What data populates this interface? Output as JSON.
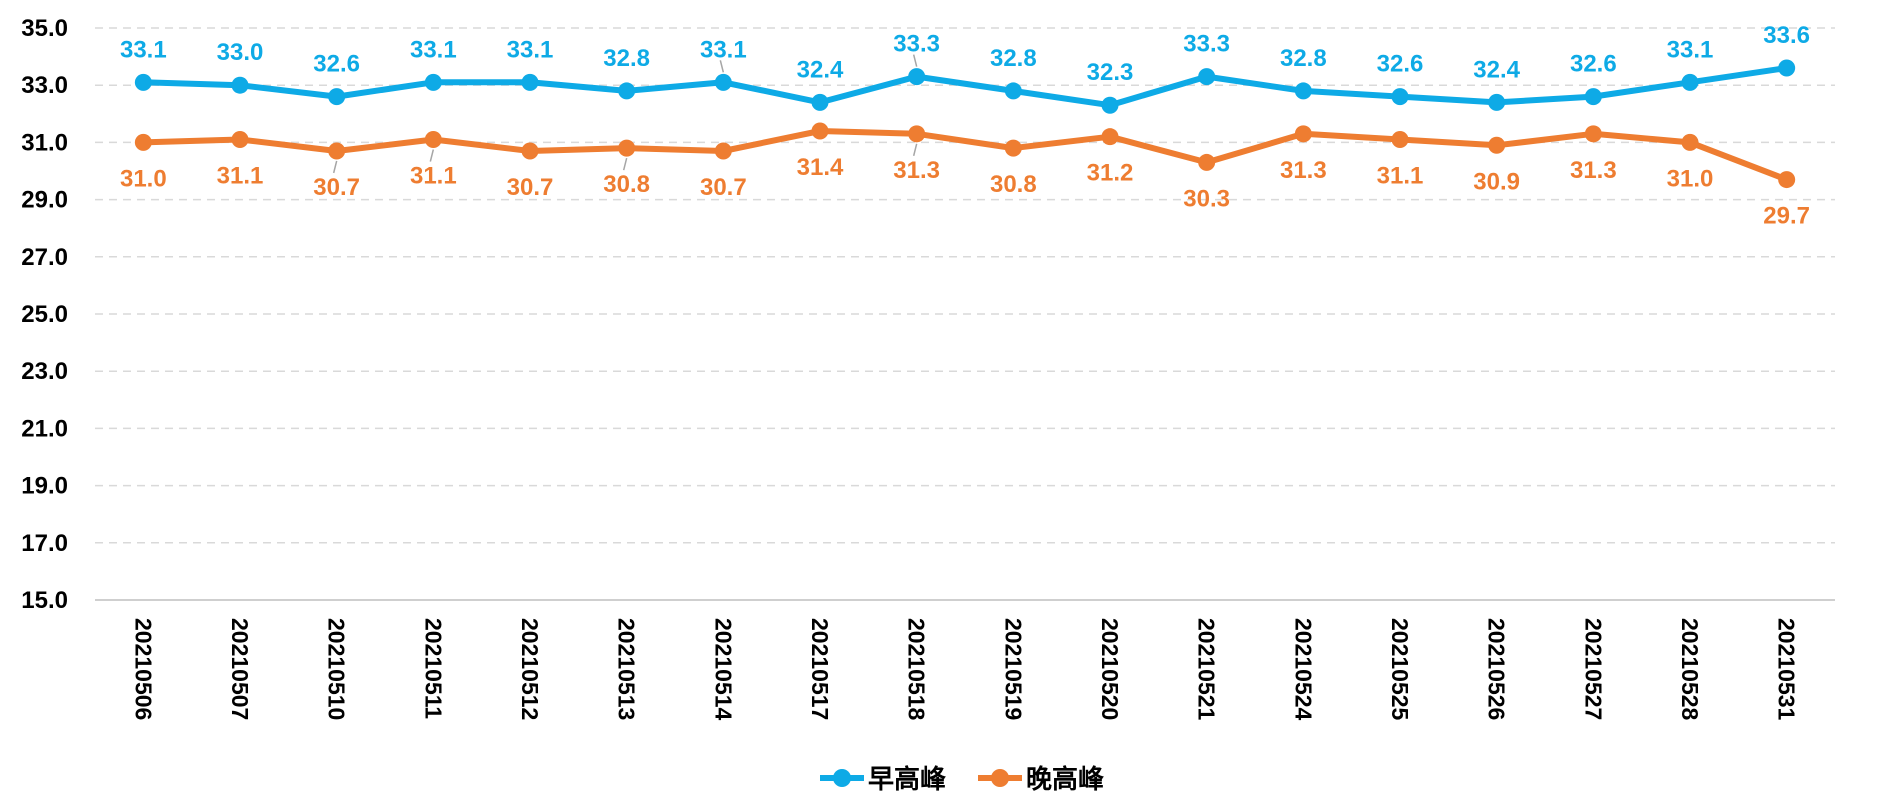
{
  "chart_data": {
    "type": "line",
    "title": "",
    "xlabel": "",
    "ylabel": "",
    "ylim": [
      15.0,
      35.0
    ],
    "yticks": [
      "15.0",
      "17.0",
      "19.0",
      "21.0",
      "23.0",
      "25.0",
      "27.0",
      "29.0",
      "31.0",
      "33.0",
      "35.0"
    ],
    "grid": true,
    "legend_position": "bottom",
    "categories": [
      "20210506",
      "20210507",
      "20210510",
      "20210511",
      "20210512",
      "20210513",
      "20210514",
      "20210517",
      "20210518",
      "20210519",
      "20210520",
      "20210521",
      "20210524",
      "20210525",
      "20210526",
      "20210527",
      "20210528",
      "20210531"
    ],
    "series": [
      {
        "name": "早高峰",
        "color": "#0eaae6",
        "values": [
          33.1,
          33.0,
          32.6,
          33.1,
          33.1,
          32.8,
          33.1,
          32.4,
          33.3,
          32.8,
          32.3,
          33.3,
          32.8,
          32.6,
          32.4,
          32.6,
          33.1,
          33.6
        ],
        "labels": [
          "33.1",
          "33.0",
          "32.6",
          "33.1",
          "33.1",
          "32.8",
          "33.1",
          "32.4",
          "33.3",
          "32.8",
          "32.3",
          "33.3",
          "32.8",
          "32.6",
          "32.4",
          "32.6",
          "33.1",
          "33.6"
        ]
      },
      {
        "name": "晚高峰",
        "color": "#ee7d31",
        "values": [
          31.0,
          31.1,
          30.7,
          31.1,
          30.7,
          30.8,
          30.7,
          31.4,
          31.3,
          30.8,
          31.2,
          30.3,
          31.3,
          31.1,
          30.9,
          31.3,
          31.0,
          29.7
        ],
        "labels": [
          "31.0",
          "31.1",
          "30.7",
          "31.1",
          "30.7",
          "30.8",
          "30.7",
          "31.4",
          "31.3",
          "30.8",
          "31.2",
          "30.3",
          "31.3",
          "31.1",
          "30.9",
          "31.3",
          "31.0",
          "29.7"
        ]
      }
    ]
  }
}
